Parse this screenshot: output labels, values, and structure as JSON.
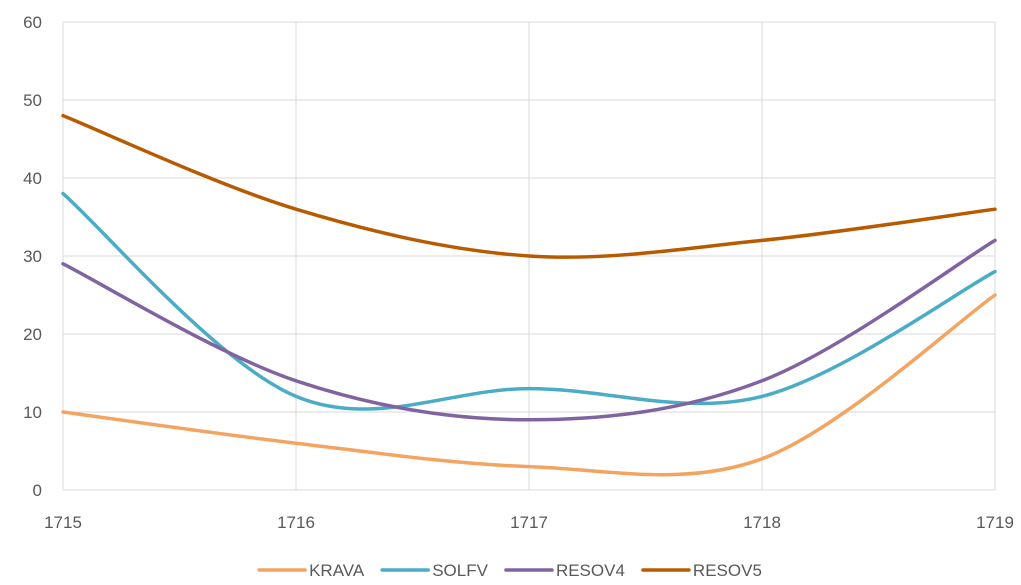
{
  "chart_data": {
    "type": "line",
    "title": "",
    "xlabel": "",
    "ylabel": "",
    "x": [
      1715,
      1716,
      1717,
      1718,
      1719
    ],
    "xlim": [
      1715,
      1719
    ],
    "ylim": [
      0,
      60
    ],
    "yticks": [
      0,
      10,
      20,
      30,
      40,
      50,
      60
    ],
    "grid": true,
    "smooth": true,
    "legend_position": "bottom",
    "series": [
      {
        "name": "KRAVA",
        "values": [
          10,
          6,
          3,
          4,
          25
        ],
        "color": "#F4A460"
      },
      {
        "name": "SOLFV",
        "values": [
          38,
          12,
          13,
          12,
          28
        ],
        "color": "#4BACC6"
      },
      {
        "name": "RESOV4",
        "values": [
          29,
          14,
          9,
          14,
          32
        ],
        "color": "#8064A2"
      },
      {
        "name": "RESOV5",
        "values": [
          48,
          36,
          30,
          32,
          36
        ],
        "color": "#B85A00"
      }
    ]
  }
}
